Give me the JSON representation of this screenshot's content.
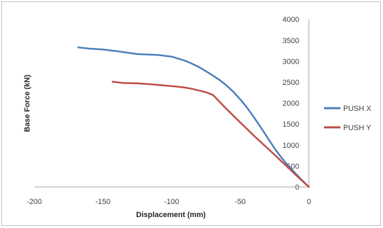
{
  "chart_data": {
    "type": "line",
    "title": "",
    "xlabel": "Displacement (mm)",
    "ylabel": "Base Force (kN)",
    "xlim": [
      -200,
      0
    ],
    "ylim": [
      0,
      4000
    ],
    "x_ticks": [
      -200,
      -150,
      -100,
      -50,
      0
    ],
    "y_ticks": [
      0,
      500,
      1000,
      1500,
      2000,
      2500,
      3000,
      3500,
      4000
    ],
    "grid": false,
    "legend_position": "right",
    "series": [
      {
        "name": "PUSH X",
        "color": "#4a7ebb",
        "points": [
          [
            -168,
            3330
          ],
          [
            -160,
            3300
          ],
          [
            -150,
            3280
          ],
          [
            -140,
            3240
          ],
          [
            -125,
            3170
          ],
          [
            -110,
            3150
          ],
          [
            -100,
            3110
          ],
          [
            -95,
            3060
          ],
          [
            -90,
            3010
          ],
          [
            -85,
            2940
          ],
          [
            -80,
            2860
          ],
          [
            -75,
            2760
          ],
          [
            -70,
            2660
          ],
          [
            -65,
            2550
          ],
          [
            -60,
            2420
          ],
          [
            -55,
            2270
          ],
          [
            -50,
            2090
          ],
          [
            -45,
            1890
          ],
          [
            -40,
            1660
          ],
          [
            -35,
            1420
          ],
          [
            -30,
            1170
          ],
          [
            -25,
            920
          ],
          [
            -20,
            700
          ],
          [
            -15,
            500
          ],
          [
            -10,
            330
          ],
          [
            -5,
            160
          ],
          [
            0,
            0
          ]
        ]
      },
      {
        "name": "PUSH Y",
        "color": "#be4b48",
        "points": [
          [
            -143,
            2510
          ],
          [
            -135,
            2480
          ],
          [
            -125,
            2470
          ],
          [
            -115,
            2450
          ],
          [
            -105,
            2420
          ],
          [
            -95,
            2390
          ],
          [
            -90,
            2370
          ],
          [
            -85,
            2340
          ],
          [
            -80,
            2300
          ],
          [
            -75,
            2260
          ],
          [
            -70,
            2200
          ],
          [
            -65,
            2030
          ],
          [
            -60,
            1860
          ],
          [
            -55,
            1700
          ],
          [
            -50,
            1540
          ],
          [
            -45,
            1380
          ],
          [
            -40,
            1220
          ],
          [
            -35,
            1070
          ],
          [
            -30,
            920
          ],
          [
            -25,
            770
          ],
          [
            -20,
            610
          ],
          [
            -15,
            460
          ],
          [
            -10,
            300
          ],
          [
            -5,
            150
          ],
          [
            0,
            0
          ]
        ]
      }
    ]
  }
}
